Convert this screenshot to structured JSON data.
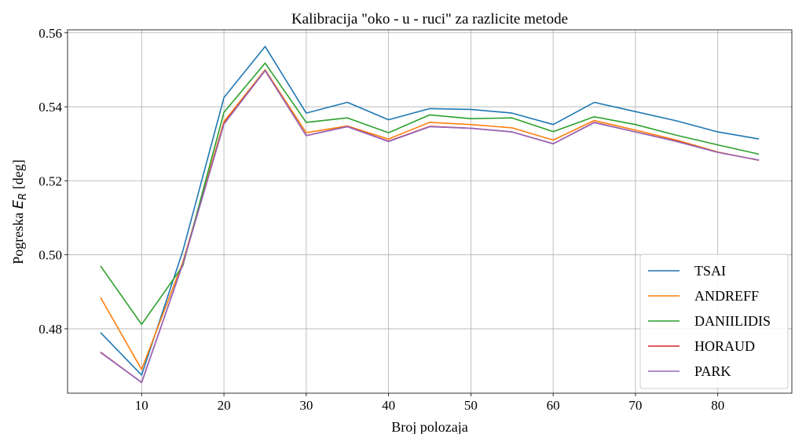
{
  "chart_data": {
    "type": "line",
    "title": "Kalibracija \"oko - u - ruci\" za razlicite metode",
    "xlabel": "Broj polozaja",
    "ylabel": "Pogreska E_R [deg]",
    "ylabel_prefix": "Pogreska ",
    "ylabel_var": "E",
    "ylabel_sub": "R",
    "ylabel_suffix": " [deg]",
    "xlim": [
      1,
      89
    ],
    "ylim": [
      0.4626,
      0.5608
    ],
    "xticks": [
      10,
      20,
      30,
      40,
      50,
      60,
      70,
      80
    ],
    "yticks": [
      0.48,
      0.5,
      0.52,
      0.54,
      0.56
    ],
    "ytick_labels": [
      "0.48",
      "0.50",
      "0.52",
      "0.54",
      "0.56"
    ],
    "grid": true,
    "legend_position": "lower right",
    "x": [
      5,
      10,
      15,
      20,
      25,
      30,
      35,
      40,
      45,
      50,
      55,
      60,
      65,
      70,
      75,
      80,
      85
    ],
    "series": [
      {
        "name": "TSAI",
        "color": "#1f77b4",
        "values": [
          0.479,
          0.4675,
          0.501,
          0.5425,
          0.5563,
          0.5383,
          0.5412,
          0.5365,
          0.5395,
          0.5393,
          0.5383,
          0.5352,
          0.5412,
          0.5387,
          0.5362,
          0.5332,
          0.5313
        ]
      },
      {
        "name": "ANDREFF",
        "color": "#ff7f0e",
        "values": [
          0.4885,
          0.469,
          0.498,
          0.536,
          0.55,
          0.533,
          0.5348,
          0.5313,
          0.5358,
          0.5352,
          0.5343,
          0.531,
          0.5363,
          0.5337,
          0.531,
          0.5278,
          0.5255
        ]
      },
      {
        "name": "DANIILIDIS",
        "color": "#2ca02c",
        "values": [
          0.497,
          0.4812,
          0.497,
          0.5385,
          0.5518,
          0.5358,
          0.537,
          0.533,
          0.5378,
          0.5368,
          0.537,
          0.5333,
          0.5373,
          0.5352,
          0.5323,
          0.5297,
          0.5272
        ]
      },
      {
        "name": "HORAUD",
        "color": "#d62728",
        "values": [
          0.4737,
          0.4655,
          0.4975,
          0.5355,
          0.5498,
          0.5322,
          0.5347,
          0.5307,
          0.5347,
          0.5342,
          0.5332,
          0.53,
          0.5358,
          0.5332,
          0.5307,
          0.5277,
          0.5256
        ]
      },
      {
        "name": "PARK",
        "color": "#9467bd",
        "values": [
          0.4736,
          0.4655,
          0.4975,
          0.5353,
          0.5498,
          0.5322,
          0.5346,
          0.5306,
          0.5346,
          0.5342,
          0.5332,
          0.53,
          0.5357,
          0.5332,
          0.5306,
          0.5277,
          0.5256
        ]
      }
    ]
  }
}
